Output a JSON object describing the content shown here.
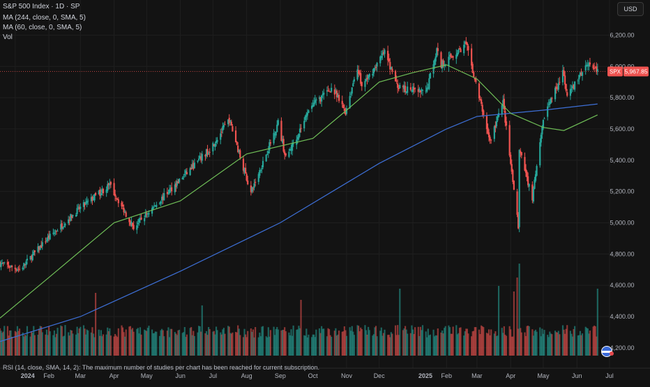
{
  "header": {
    "title": "S&P 500 Index · 1D · SP",
    "ma_long": "MA (244, close, 0, SMA, 5)",
    "ma_short": "MA (60, close, 0, SMA, 5)",
    "volume": "Vol",
    "currency_button": "USD"
  },
  "footer": {
    "rsi_notice": "RSI (14, close, SMA, 14, 2): The maximum number of studies per chart has been reached for current subscription."
  },
  "colors": {
    "background": "#131313",
    "up": "#26a69a",
    "down": "#ef5350",
    "ma_long": "#3d6fd6",
    "ma_short": "#6fbe57",
    "price_badge": "#ef5350",
    "grid": "#1f1f1f",
    "axis_text": "#b2b5be"
  },
  "chart_data": {
    "type": "candlestick",
    "symbol": "SPX",
    "last_price": 5967.85,
    "last_price_label": "5,967.85",
    "grid": true,
    "ylim": [
      4150,
      6300
    ],
    "y_ticks": [
      {
        "v": 4200,
        "label": "4,200.00"
      },
      {
        "v": 4400,
        "label": "4,400.00"
      },
      {
        "v": 4600,
        "label": "4,600.00"
      },
      {
        "v": 4800,
        "label": "4,800.00"
      },
      {
        "v": 5000,
        "label": "5,000.00"
      },
      {
        "v": 5200,
        "label": "5,200.00"
      },
      {
        "v": 5400,
        "label": "5,400.00"
      },
      {
        "v": 5600,
        "label": "5,600.00"
      },
      {
        "v": 5800,
        "label": "5,800.00"
      },
      {
        "v": 6000,
        "label": "6,000.00"
      },
      {
        "v": 6200,
        "label": "6,200.00"
      }
    ],
    "x_ticks": [
      {
        "date": "2024-01-01",
        "label": "2024",
        "bold": true
      },
      {
        "date": "2024-02-01",
        "label": "Feb"
      },
      {
        "date": "2024-03-01",
        "label": "Mar"
      },
      {
        "date": "2024-04-01",
        "label": "Apr"
      },
      {
        "date": "2024-05-01",
        "label": "May"
      },
      {
        "date": "2024-06-01",
        "label": "Jun"
      },
      {
        "date": "2024-07-01",
        "label": "Jul"
      },
      {
        "date": "2024-08-01",
        "label": "Aug"
      },
      {
        "date": "2024-09-01",
        "label": "Sep"
      },
      {
        "date": "2024-10-01",
        "label": "Oct"
      },
      {
        "date": "2024-11-01",
        "label": "Nov"
      },
      {
        "date": "2024-12-01",
        "label": "Dec"
      },
      {
        "date": "2025-01-01",
        "label": "2025",
        "bold": true
      },
      {
        "date": "2025-02-01",
        "label": "Feb"
      },
      {
        "date": "2025-03-01",
        "label": "Mar"
      },
      {
        "date": "2025-04-01",
        "label": "Apr"
      },
      {
        "date": "2025-05-01",
        "label": "May"
      },
      {
        "date": "2025-06-01",
        "label": "Jun"
      },
      {
        "date": "2025-07-01",
        "label": "Jul"
      }
    ],
    "x_range": [
      "2023-12-18",
      "2025-07-10"
    ],
    "price_path": [
      [
        "2023-12-18",
        4740
      ],
      [
        "2024-01-05",
        4700
      ],
      [
        "2024-01-31",
        4900
      ],
      [
        "2024-02-29",
        5090
      ],
      [
        "2024-03-28",
        5240
      ],
      [
        "2024-04-19",
        4970
      ],
      [
        "2024-05-31",
        5270
      ],
      [
        "2024-06-28",
        5470
      ],
      [
        "2024-07-16",
        5660
      ],
      [
        "2024-08-05",
        5190
      ],
      [
        "2024-08-30",
        5640
      ],
      [
        "2024-09-06",
        5410
      ],
      [
        "2024-09-30",
        5750
      ],
      [
        "2024-10-18",
        5860
      ],
      [
        "2024-10-31",
        5710
      ],
      [
        "2024-11-11",
        6000
      ],
      [
        "2024-11-15",
        5870
      ],
      [
        "2024-12-06",
        6090
      ],
      [
        "2024-12-18",
        5870
      ],
      [
        "2025-01-13",
        5830
      ],
      [
        "2025-01-23",
        6110
      ],
      [
        "2025-01-27",
        6010
      ],
      [
        "2025-02-19",
        6140
      ],
      [
        "2025-03-13",
        5520
      ],
      [
        "2025-03-25",
        5770
      ],
      [
        "2025-04-08",
        4980
      ],
      [
        "2025-04-09",
        5460
      ],
      [
        "2025-04-21",
        5160
      ],
      [
        "2025-05-02",
        5690
      ],
      [
        "2025-05-19",
        5960
      ],
      [
        "2025-05-23",
        5800
      ],
      [
        "2025-06-11",
        6030
      ],
      [
        "2025-06-20",
        5967.85
      ]
    ],
    "series": [
      {
        "name": "MA (244, close, 0, SMA, 5)",
        "values": [
          [
            "2023-12-18",
            4240
          ],
          [
            "2024-03-01",
            4400
          ],
          [
            "2024-06-01",
            4690
          ],
          [
            "2024-09-01",
            5000
          ],
          [
            "2024-12-01",
            5380
          ],
          [
            "2025-02-01",
            5600
          ],
          [
            "2025-03-01",
            5680
          ],
          [
            "2025-05-01",
            5720
          ],
          [
            "2025-06-20",
            5760
          ]
        ]
      },
      {
        "name": "MA (60, close, 0, SMA, 5)",
        "values": [
          [
            "2023-12-18",
            4390
          ],
          [
            "2024-02-01",
            4650
          ],
          [
            "2024-04-01",
            5000
          ],
          [
            "2024-06-01",
            5140
          ],
          [
            "2024-08-01",
            5440
          ],
          [
            "2024-10-01",
            5540
          ],
          [
            "2024-11-01",
            5720
          ],
          [
            "2024-12-01",
            5900
          ],
          [
            "2025-01-01",
            5960
          ],
          [
            "2025-02-01",
            6010
          ],
          [
            "2025-03-01",
            5920
          ],
          [
            "2025-04-01",
            5700
          ],
          [
            "2025-05-01",
            5610
          ],
          [
            "2025-05-20",
            5590
          ],
          [
            "2025-06-20",
            5690
          ]
        ]
      }
    ],
    "volume_spikes": [
      [
        "2024-03-15",
        4.5
      ],
      [
        "2024-06-21",
        3.6
      ],
      [
        "2024-09-20",
        4.0
      ],
      [
        "2024-12-20",
        4.8
      ],
      [
        "2025-03-21",
        5.0
      ],
      [
        "2025-04-04",
        4.6
      ],
      [
        "2025-04-07",
        5.6
      ],
      [
        "2025-04-09",
        6.6
      ],
      [
        "2025-06-20",
        4.8
      ]
    ]
  }
}
